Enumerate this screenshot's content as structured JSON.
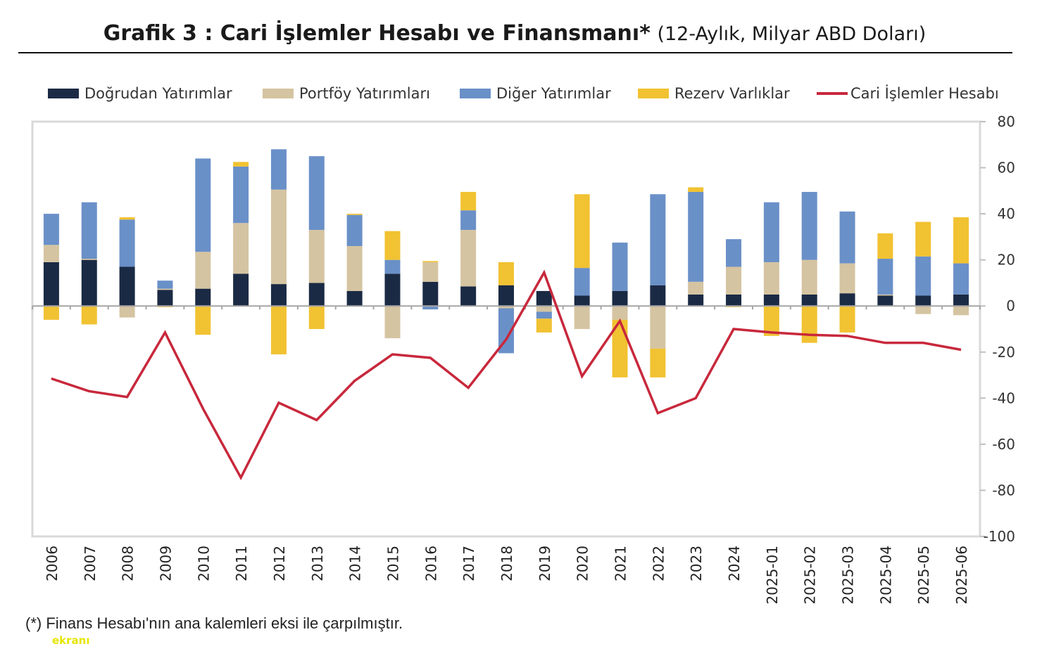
{
  "title_main": "Grafik 3 : Cari İşlemler Hesabı ve Finansmanı*",
  "title_sub": "(12-Aylık, Milyar ABD Doları)",
  "footnote": "(*) Finans Hesabı'nın ana kalemleri eksi ile çarpılmıştır.",
  "watermark": "ekranı",
  "chart_data": {
    "type": "bar",
    "stacked": true,
    "categories": [
      "2006",
      "2007",
      "2008",
      "2009",
      "2010",
      "2011",
      "2012",
      "2013",
      "2014",
      "2015",
      "2016",
      "2017",
      "2018",
      "2019",
      "2020",
      "2021",
      "2022",
      "2023",
      "2024",
      "2025-01",
      "2025-02",
      "2025-03",
      "2025-04",
      "2025-05",
      "2025-06"
    ],
    "ylim": [
      -100,
      80
    ],
    "yticks": [
      80,
      60,
      40,
      20,
      0,
      -20,
      -40,
      -60,
      -80,
      -100
    ],
    "y_axis_side": "right",
    "legend_position": "top",
    "grid": false,
    "series": [
      {
        "name": "Doğrudan Yatırımlar",
        "kind": "bar",
        "color": "#1b2a44",
        "values": [
          19,
          20,
          17,
          7,
          7.5,
          14,
          9.5,
          10,
          6.5,
          14,
          10.5,
          8.5,
          9,
          6.5,
          4.5,
          6.5,
          9,
          5,
          5,
          5,
          5,
          5.5,
          4.5,
          4.5,
          5
        ]
      },
      {
        "name": "Portföy Yatırımları",
        "kind": "bar",
        "color": "#d5c4a1",
        "values": [
          7.5,
          0.5,
          -5,
          0.5,
          16,
          22,
          41,
          23,
          19.5,
          -14,
          8.5,
          24.5,
          -1,
          -2.5,
          -10,
          -6,
          -18.5,
          5.5,
          12,
          14,
          15,
          13,
          0.5,
          -3.5,
          -4
        ]
      },
      {
        "name": "Diğer Yatırımlar",
        "kind": "bar",
        "color": "#6a90c8",
        "values": [
          13.5,
          24.5,
          20.5,
          3.5,
          40.5,
          24.5,
          17.5,
          32,
          13.5,
          6,
          -1.5,
          8.5,
          -19.5,
          -3,
          12,
          21,
          39.5,
          39,
          12,
          26,
          29.5,
          22.5,
          15.5,
          17,
          13.5
        ]
      },
      {
        "name": "Rezerv Varlıklar",
        "kind": "bar",
        "color": "#f1c232",
        "values": [
          -6,
          -8,
          1,
          -0.5,
          -12.5,
          2,
          -21,
          -10,
          0.5,
          12.5,
          0.5,
          8,
          10,
          -6,
          32,
          -25,
          -12.5,
          2,
          -0.5,
          -13,
          -16,
          -11.5,
          11,
          15,
          20
        ]
      },
      {
        "name": "Cari İşlemler Hesabı",
        "kind": "line",
        "color": "#c8283c",
        "values": [
          -31.5,
          -37,
          -39.5,
          -11.5,
          -44.5,
          -74.5,
          -42,
          -49.5,
          -32.5,
          -21,
          -22.5,
          -35.5,
          -14.5,
          14.5,
          -30.5,
          -6.5,
          -46.5,
          -40,
          -10,
          -11.5,
          -12.5,
          -13,
          -16,
          -16,
          -19
        ]
      }
    ]
  }
}
